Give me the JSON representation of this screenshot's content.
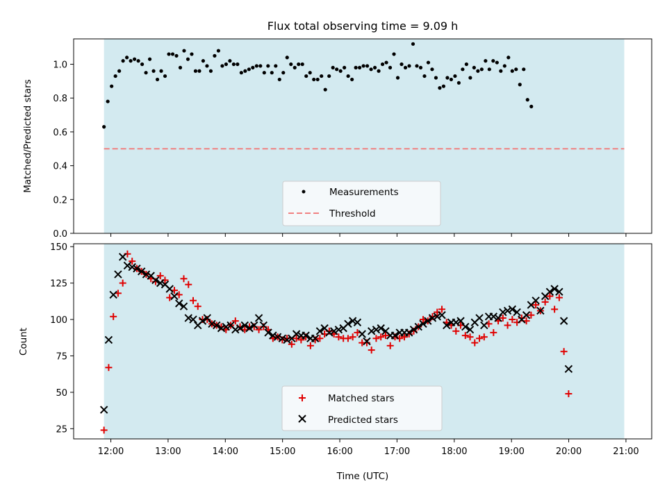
{
  "figure": {
    "title": "Flux total observing time = 9.09 h",
    "xlabel": "Time (UTC)",
    "x_ticks": [
      "12:00",
      "13:00",
      "14:00",
      "15:00",
      "16:00",
      "17:00",
      "18:00",
      "19:00",
      "20:00",
      "21:00"
    ],
    "observing_window": {
      "start_hour": 11.88,
      "end_hour": 20.97,
      "color": "#d3eaf0"
    }
  },
  "chart_data": [
    {
      "type": "scatter",
      "panel": "top",
      "ylabel": "Matched/Predicted stars",
      "ylim": [
        0,
        1.15
      ],
      "xlim_hours": [
        11.35,
        21.45
      ],
      "y_ticks": [
        "0.0",
        "0.2",
        "0.4",
        "0.6",
        "0.8",
        "1.0"
      ],
      "y_tick_values": [
        0,
        0.2,
        0.4,
        0.6,
        0.8,
        1.0
      ],
      "legend_position": "lower center",
      "series": [
        {
          "name": "Measurements",
          "marker": "dot",
          "color": "#000000",
          "x_start_hour": 11.88,
          "x_step_min": 4,
          "values": [
            0.63,
            0.78,
            0.87,
            0.93,
            0.96,
            1.02,
            1.04,
            1.02,
            1.03,
            1.02,
            1.0,
            0.95,
            1.03,
            0.96,
            0.91,
            0.96,
            0.93,
            1.06,
            1.06,
            1.05,
            0.98,
            1.08,
            1.03,
            1.06,
            0.96,
            0.96,
            1.02,
            0.99,
            0.96,
            1.05,
            1.08,
            0.99,
            1.0,
            1.02,
            1.0,
            1.0,
            0.95,
            0.96,
            0.97,
            0.98,
            0.99,
            0.99,
            0.95,
            0.99,
            0.95,
            0.99,
            0.91,
            0.95,
            1.04,
            1.0,
            0.98,
            1.0,
            1.0,
            0.93,
            0.95,
            0.91,
            0.91,
            0.93,
            0.85,
            0.93,
            0.98,
            0.97,
            0.96,
            0.98,
            0.93,
            0.91,
            0.98,
            0.98,
            0.99,
            0.99,
            0.97,
            0.98,
            0.96,
            1.0,
            1.01,
            0.98,
            1.06,
            0.92,
            1.0,
            0.98,
            0.99,
            1.12,
            0.99,
            0.98,
            0.93,
            1.01,
            0.97,
            0.92,
            0.86,
            0.87,
            0.92,
            0.91,
            0.93,
            0.89,
            0.97,
            1.0,
            0.92,
            0.98,
            0.96,
            0.97,
            1.02,
            0.97,
            1.02,
            1.01,
            0.96,
            0.99,
            1.04,
            0.96,
            0.97,
            0.88,
            0.97,
            0.79,
            0.75
          ]
        },
        {
          "name": "Threshold",
          "marker": "dashed-line",
          "color": "#f08080",
          "value": 0.5
        }
      ]
    },
    {
      "type": "scatter",
      "panel": "bottom",
      "ylabel": "Count",
      "ylim": [
        18,
        152
      ],
      "xlim_hours": [
        11.35,
        21.45
      ],
      "y_ticks": [
        "25",
        "50",
        "75",
        "100",
        "125",
        "150"
      ],
      "y_tick_values": [
        25,
        50,
        75,
        100,
        125,
        150
      ],
      "legend_position": "lower center",
      "series": [
        {
          "name": "Matched stars",
          "marker": "plus",
          "color": "#e00000",
          "x_start_hour": 11.88,
          "x_step_min": 4.92,
          "values": [
            24,
            67,
            102,
            118,
            125,
            145,
            140,
            135,
            133,
            131,
            128,
            126,
            130,
            127,
            115,
            120,
            117,
            128,
            124,
            113,
            109,
            100,
            100,
            97,
            96,
            95,
            93,
            96,
            99,
            95,
            93,
            95,
            95,
            93,
            95,
            93,
            87,
            88,
            86,
            87,
            83,
            87,
            86,
            88,
            82,
            86,
            87,
            90,
            92,
            90,
            88,
            87,
            87,
            88,
            91,
            84,
            84,
            79,
            87,
            88,
            89,
            82,
            88,
            87,
            88,
            90,
            92,
            95,
            100,
            99,
            102,
            105,
            107,
            98,
            96,
            92,
            96,
            89,
            88,
            84,
            87,
            88,
            97,
            91,
            99,
            101,
            96,
            100,
            98,
            101,
            99,
            103,
            110,
            106,
            112,
            116,
            107,
            115,
            78,
            49
          ]
        },
        {
          "name": "Predicted stars",
          "marker": "x",
          "color": "#000000",
          "x_start_hour": 11.88,
          "x_step_min": 4.92,
          "values": [
            38,
            86,
            117,
            131,
            143,
            137,
            136,
            135,
            133,
            131,
            130,
            127,
            125,
            124,
            121,
            116,
            111,
            109,
            101,
            100,
            96,
            99,
            101,
            97,
            96,
            94,
            95,
            96,
            93,
            94,
            96,
            94,
            96,
            101,
            96,
            91,
            89,
            88,
            87,
            86,
            87,
            90,
            89,
            89,
            87,
            87,
            92,
            94,
            91,
            92,
            93,
            94,
            97,
            99,
            98,
            90,
            85,
            92,
            93,
            94,
            92,
            89,
            89,
            91,
            91,
            91,
            93,
            95,
            97,
            99,
            101,
            102,
            103,
            96,
            98,
            98,
            99,
            95,
            93,
            98,
            101,
            96,
            102,
            102,
            101,
            105,
            106,
            107,
            105,
            100,
            103,
            110,
            113,
            106,
            116,
            119,
            121,
            119,
            99,
            66
          ]
        }
      ]
    }
  ]
}
